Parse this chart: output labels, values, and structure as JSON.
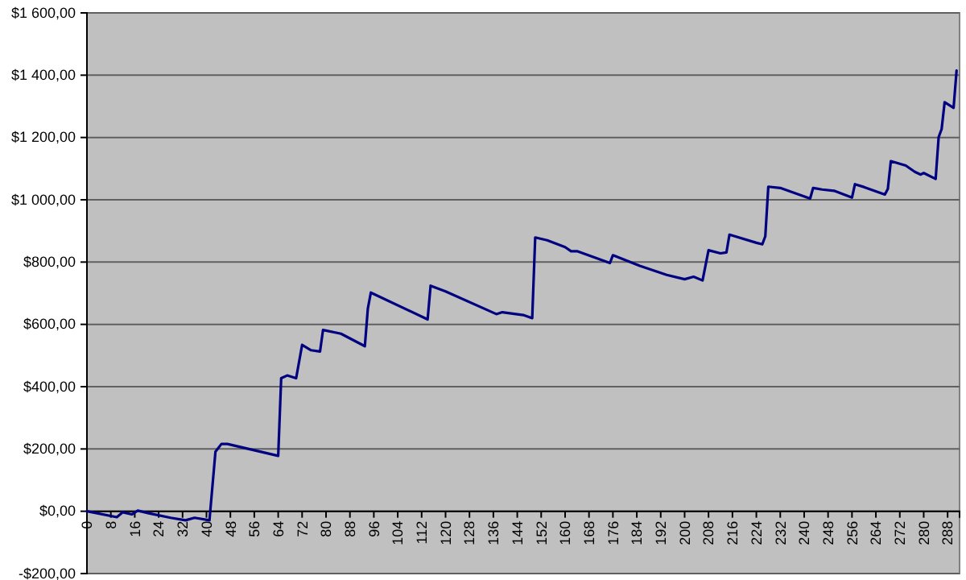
{
  "chart_data": {
    "type": "line",
    "x": [
      0,
      10,
      12,
      15,
      17,
      21,
      28,
      33,
      36,
      41,
      43,
      45,
      47,
      64,
      65,
      67,
      70,
      72,
      75,
      78,
      79,
      85,
      93,
      94,
      95,
      114,
      115,
      120,
      137,
      139,
      146,
      149,
      150,
      154,
      160,
      162,
      164,
      175,
      176,
      185,
      194,
      200,
      203,
      206,
      208,
      212,
      214,
      215,
      224,
      226,
      227,
      228,
      232,
      242,
      243,
      246,
      250,
      256,
      257,
      260,
      267,
      268,
      269,
      274,
      277,
      279,
      280,
      284,
      285,
      286,
      287,
      290,
      291
    ],
    "series": [
      {
        "color": "#000080",
        "values": [
          0,
          -19,
          -3,
          -10,
          2,
          -7,
          -21,
          -29,
          -21,
          -29,
          191,
          216,
          216,
          178,
          427,
          436,
          427,
          534,
          517,
          513,
          582,
          570,
          530,
          651,
          702,
          616,
          724,
          706,
          633,
          639,
          630,
          620,
          879,
          870,
          848,
          835,
          835,
          797,
          822,
          788,
          759,
          745,
          753,
          741,
          838,
          828,
          831,
          888,
          862,
          857,
          883,
          1042,
          1038,
          1004,
          1038,
          1033,
          1029,
          1007,
          1050,
          1041,
          1017,
          1035,
          1124,
          1110,
          1090,
          1081,
          1086,
          1067,
          1201,
          1227,
          1313,
          1295,
          1415
        ]
      }
    ],
    "xlim": [
      0,
      292
    ],
    "xticks": [
      0,
      8,
      16,
      24,
      32,
      40,
      48,
      56,
      64,
      72,
      80,
      88,
      96,
      104,
      112,
      120,
      128,
      136,
      144,
      152,
      160,
      168,
      176,
      184,
      192,
      200,
      208,
      216,
      224,
      232,
      240,
      248,
      256,
      264,
      272,
      280,
      288
    ],
    "ylim": [
      -200,
      1600
    ],
    "yticks": [
      {
        "value": -200,
        "label": "-$200,00"
      },
      {
        "value": 0,
        "label": "$0,00"
      },
      {
        "value": 200,
        "label": "$200,00"
      },
      {
        "value": 400,
        "label": "$400,00"
      },
      {
        "value": 600,
        "label": "$600,00"
      },
      {
        "value": 800,
        "label": "$800,00"
      },
      {
        "value": 1000,
        "label": "$1 000,00"
      },
      {
        "value": 1200,
        "label": "$1 200,00"
      },
      {
        "value": 1400,
        "label": "$1 400,00"
      },
      {
        "value": 1600,
        "label": "$1 600,00"
      }
    ],
    "grid": "y",
    "line_style": "solid"
  }
}
